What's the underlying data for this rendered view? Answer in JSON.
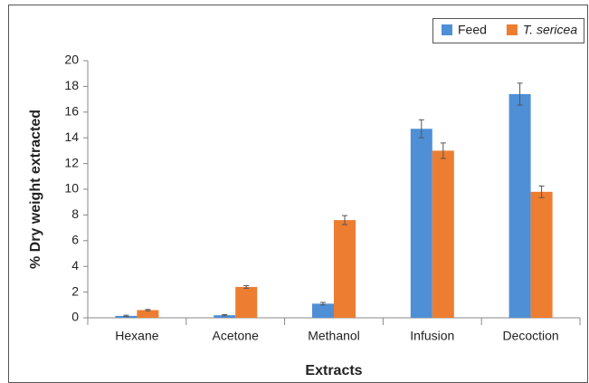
{
  "chart_data": {
    "type": "bar",
    "x_label": "Extracts",
    "y_label": "% Dry weight extracted",
    "categories": [
      "Hexane",
      "Acetone",
      "Methanol",
      "Infusion",
      "Decoction"
    ],
    "series": [
      {
        "name": "Feed",
        "color": "#4f8fd6",
        "values": [
          0.15,
          0.2,
          1.1,
          14.7,
          17.4
        ],
        "errors": [
          0.05,
          0.05,
          0.1,
          0.7,
          0.85
        ]
      },
      {
        "name": "T. sericea",
        "color": "#ed7d31",
        "values": [
          0.6,
          2.4,
          7.6,
          13.0,
          9.8
        ],
        "errors": [
          0.05,
          0.1,
          0.35,
          0.6,
          0.45
        ]
      }
    ],
    "ylim": [
      0,
      20
    ],
    "yticks": [
      0,
      2,
      4,
      6,
      8,
      10,
      12,
      14,
      16,
      18,
      20
    ],
    "legend": "top-right",
    "grid": false
  }
}
